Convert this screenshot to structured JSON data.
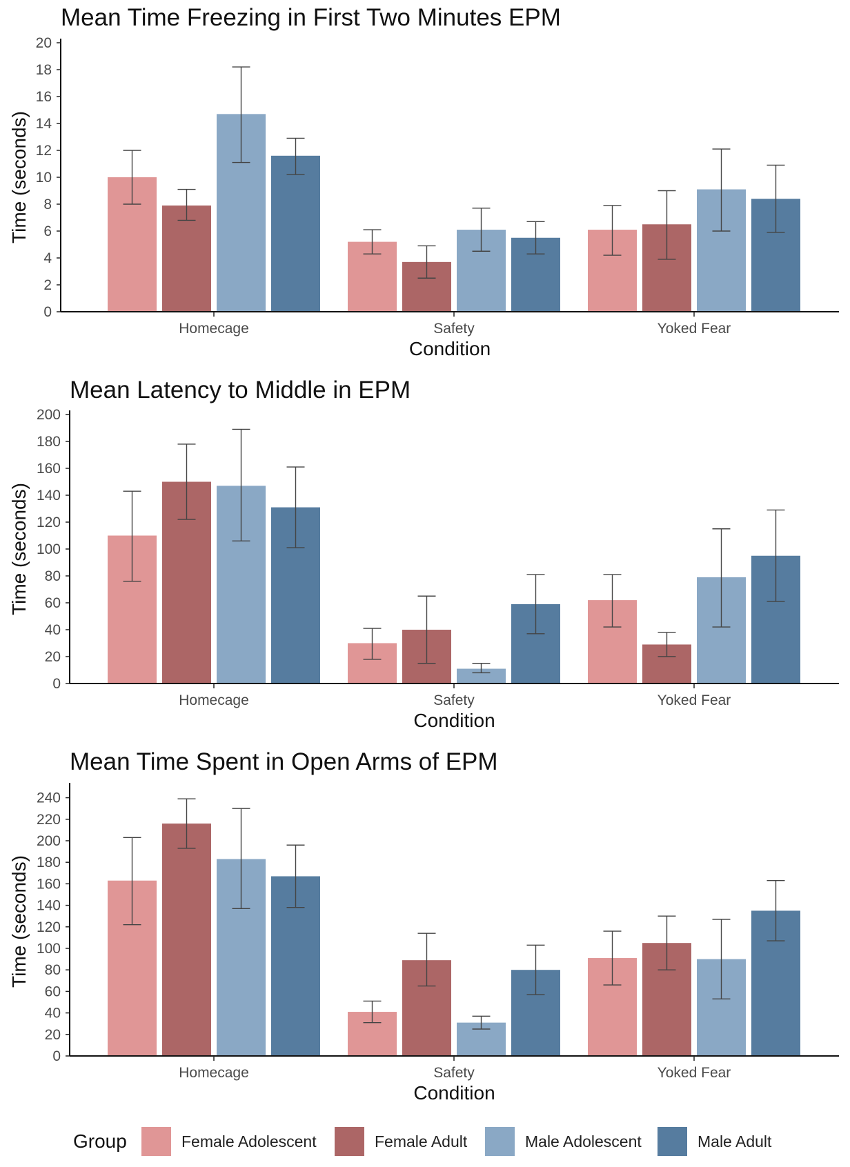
{
  "chart_data": [
    {
      "type": "bar",
      "title": "Mean Time Freezing in First Two Minutes EPM",
      "xlabel": "Condition",
      "ylabel": "Time (seconds)",
      "ylim": [
        0,
        20
      ],
      "yticks": [
        0,
        2,
        4,
        6,
        8,
        10,
        12,
        14,
        16,
        18,
        20
      ],
      "categories": [
        "Homecage",
        "Safety",
        "Yoked Fear"
      ],
      "series": [
        {
          "name": "Female Adolescent",
          "values": [
            10.0,
            5.2,
            6.1
          ],
          "err_low": [
            8.0,
            4.3,
            4.2
          ],
          "err_high": [
            12.0,
            6.1,
            7.9
          ]
        },
        {
          "name": "Female Adult",
          "values": [
            7.9,
            3.7,
            6.5
          ],
          "err_low": [
            6.8,
            2.5,
            3.9
          ],
          "err_high": [
            9.1,
            4.9,
            9.0
          ]
        },
        {
          "name": "Male Adolescent",
          "values": [
            14.7,
            6.1,
            9.1
          ],
          "err_low": [
            11.1,
            4.5,
            6.0
          ],
          "err_high": [
            18.2,
            7.7,
            12.1
          ]
        },
        {
          "name": "Male Adult",
          "values": [
            11.6,
            5.5,
            8.4
          ],
          "err_low": [
            10.2,
            4.3,
            5.9
          ],
          "err_high": [
            12.9,
            6.7,
            10.9
          ]
        }
      ]
    },
    {
      "type": "bar",
      "title": "Mean Latency to Middle in EPM",
      "xlabel": "Condition",
      "ylabel": "Time (seconds)",
      "ylim": [
        0,
        200
      ],
      "yticks": [
        0,
        20,
        40,
        60,
        80,
        100,
        120,
        140,
        160,
        180,
        200
      ],
      "categories": [
        "Homecage",
        "Safety",
        "Yoked Fear"
      ],
      "series": [
        {
          "name": "Female Adolescent",
          "values": [
            110,
            30,
            62
          ],
          "err_low": [
            76,
            18,
            42
          ],
          "err_high": [
            143,
            41,
            81
          ]
        },
        {
          "name": "Female Adult",
          "values": [
            150,
            40,
            29
          ],
          "err_low": [
            122,
            15,
            20
          ],
          "err_high": [
            178,
            65,
            38
          ]
        },
        {
          "name": "Male Adolescent",
          "values": [
            147,
            11,
            79
          ],
          "err_low": [
            106,
            8,
            42
          ],
          "err_high": [
            189,
            15,
            115
          ]
        },
        {
          "name": "Male Adult",
          "values": [
            131,
            59,
            95
          ],
          "err_low": [
            101,
            37,
            61
          ],
          "err_high": [
            161,
            81,
            129
          ]
        }
      ]
    },
    {
      "type": "bar",
      "title": "Mean Time Spent in Open Arms of EPM",
      "xlabel": "Condition",
      "ylabel": "Time (seconds)",
      "ylim": [
        0,
        250
      ],
      "yticks": [
        0,
        20,
        40,
        60,
        80,
        100,
        120,
        140,
        160,
        180,
        200,
        220,
        240
      ],
      "categories": [
        "Homecage",
        "Safety",
        "Yoked Fear"
      ],
      "series": [
        {
          "name": "Female Adolescent",
          "values": [
            163,
            41,
            91
          ],
          "err_low": [
            122,
            31,
            66
          ],
          "err_high": [
            203,
            51,
            116
          ]
        },
        {
          "name": "Female Adult",
          "values": [
            216,
            89,
            105
          ],
          "err_low": [
            193,
            65,
            80
          ],
          "err_high": [
            239,
            114,
            130
          ]
        },
        {
          "name": "Male Adolescent",
          "values": [
            183,
            31,
            90
          ],
          "err_low": [
            137,
            25,
            53
          ],
          "err_high": [
            230,
            37,
            127
          ]
        },
        {
          "name": "Male Adult",
          "values": [
            167,
            80,
            135
          ],
          "err_low": [
            138,
            57,
            107
          ],
          "err_high": [
            196,
            103,
            163
          ]
        }
      ]
    }
  ],
  "legend": {
    "title": "Group",
    "placement": "bottom",
    "items": [
      "Female Adolescent",
      "Female Adult",
      "Male Adolescent",
      "Male Adult"
    ]
  },
  "colors": [
    "#e09696",
    "#ac6666",
    "#8aa8c5",
    "#567c9f"
  ],
  "error_bar_color": "#444444",
  "grid": false
}
